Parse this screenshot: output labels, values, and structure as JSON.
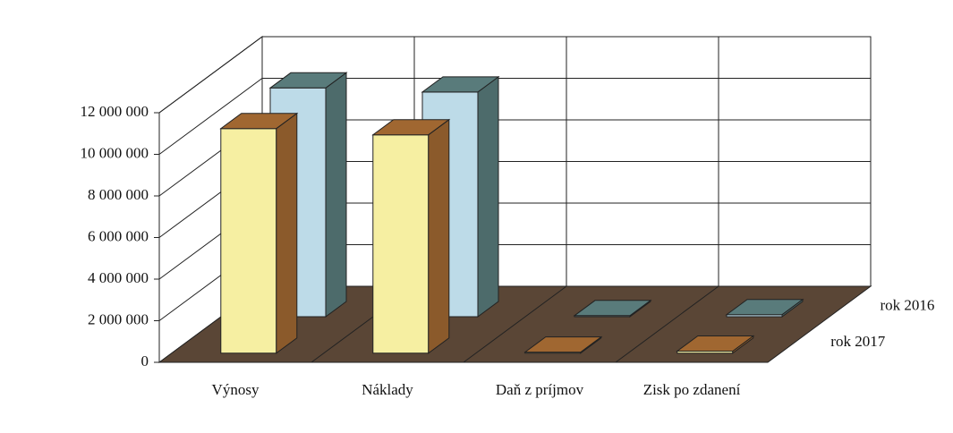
{
  "chart_data": {
    "type": "bar3d",
    "categories": [
      "Výnosy",
      "Náklady",
      "Daň z príjmov",
      "Zisk po zdanení"
    ],
    "series": [
      {
        "name": "rok 2017",
        "color": "#f6efa2",
        "side_color": "#8b5a2b",
        "values": [
          10800000,
          10500000,
          50000,
          100000
        ]
      },
      {
        "name": "rok 2016",
        "color": "#bddbe8",
        "side_color": "#4d6b6b",
        "values": [
          11000000,
          10800000,
          50000,
          100000
        ]
      }
    ],
    "ylim": [
      0,
      12000000
    ],
    "yticks": [
      0,
      {
        "value": 2000000,
        "label": "2 000 000"
      },
      {
        "value": 4000000,
        "label": "4 000 000"
      },
      {
        "value": 6000000,
        "label": "6 000 000"
      },
      {
        "value": 8000000,
        "label": "8 000 000"
      },
      {
        "value": 10000000,
        "label": "10 000 000"
      },
      {
        "value": 12000000,
        "label": "12 000 000"
      }
    ],
    "grid": true
  }
}
